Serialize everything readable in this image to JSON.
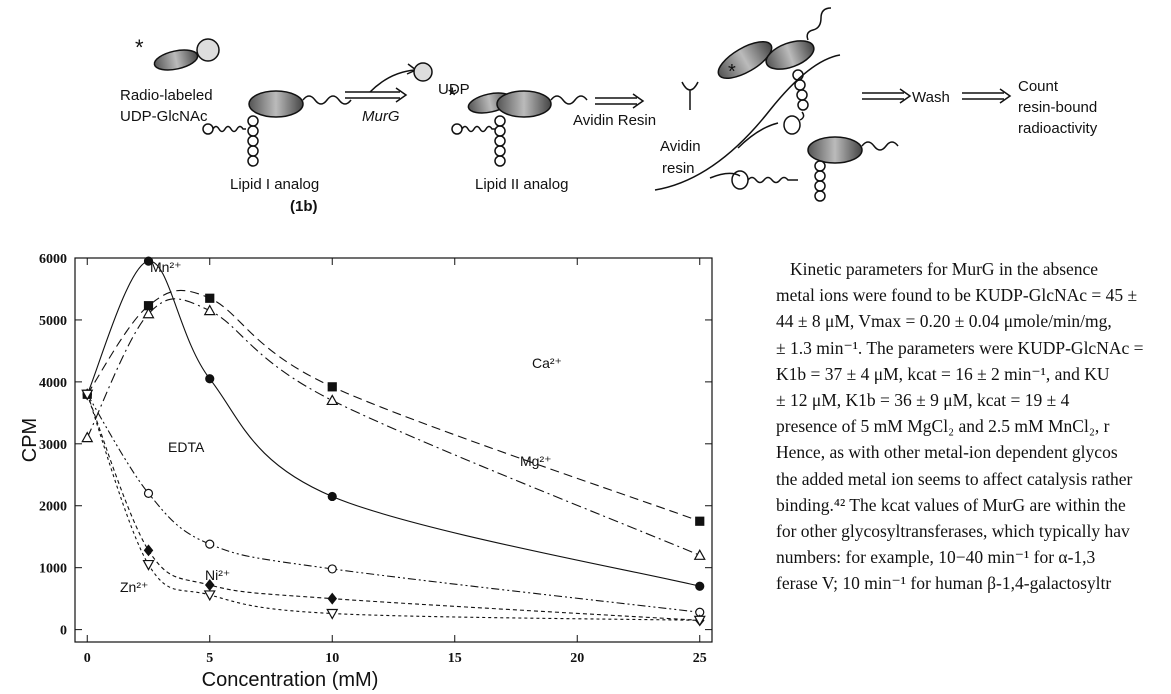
{
  "scheme": {
    "labels": [
      "Radio-labeled",
      "UDP-GlcNAc",
      "Lipid I  analog",
      "(1b)",
      "MurG",
      "UDP",
      "Lipid II  analog",
      "Avidin Resin",
      "Avidin",
      "resin",
      "Wash",
      "Count",
      "resin-bound",
      "radioactivity"
    ]
  },
  "chart_data": {
    "type": "line",
    "x_label": "Concentration (mM)",
    "y_label": "CPM",
    "x": [
      0,
      2.5,
      5,
      10,
      25
    ],
    "xlim": [
      -0.5,
      25.5
    ],
    "ylim": [
      -200,
      6000
    ],
    "xticks": [
      0,
      5,
      10,
      15,
      20,
      25
    ],
    "yticks": [
      0,
      1000,
      2000,
      3000,
      4000,
      5000,
      6000
    ],
    "series": [
      {
        "name": "Mn²⁺",
        "color": "#111",
        "marker": "circle-filled",
        "dash": "none",
        "values": [
          3800,
          5950,
          4050,
          2150,
          700
        ]
      },
      {
        "name": "Ca²⁺",
        "color": "#111",
        "marker": "square-filled",
        "dash": "9 5",
        "values": [
          3800,
          5230,
          5350,
          3920,
          1750
        ]
      },
      {
        "name": "Mg²⁺",
        "color": "#111",
        "marker": "triangle-open",
        "dash": "10 4 2 4",
        "values": [
          3100,
          5100,
          5150,
          3700,
          1200
        ]
      },
      {
        "name": "EDTA",
        "color": "#111",
        "marker": "circle-open",
        "dash": "8 3 2 3 2 3",
        "values": [
          3800,
          2200,
          1380,
          980,
          280
        ]
      },
      {
        "name": "Ni²⁺",
        "color": "#111",
        "marker": "diamond-filled",
        "dash": "4 3",
        "values": [
          3800,
          1280,
          720,
          500,
          150
        ]
      },
      {
        "name": "Zn²⁺",
        "color": "#111",
        "marker": "triangle-down-open",
        "dash": "3 3",
        "values": [
          3800,
          1050,
          560,
          260,
          150
        ]
      }
    ]
  },
  "text": {
    "lines": [
      "Kinetic parameters for MurG in the absence",
      "metal ions were found to be KUDP-GlcNAc = 45 ±",
      "44 ± 8 μM, Vmax = 0.20 ± 0.04 μmole/min/mg,",
      "± 1.3 min⁻¹. The parameters were KUDP-GlcNAc =",
      "K1b = 37 ± 4 μM, kcat = 16 ± 2 min⁻¹, and KU",
      "± 12 μM, K1b = 36 ± 9 μM, kcat = 19 ± 4",
      "presence of 5 mM MgCl₂ and 2.5 mM MnCl₂, r",
      "Hence, as with other metal-ion dependent glycos",
      "the added metal ion seems to affect catalysis rather",
      "binding.⁴² The kcat values of MurG are within the",
      "for other glycosyltransferases, which typically hav",
      "numbers:  for  example,  10−40  min⁻¹  for  α-1,3",
      "ferase V; 10 min⁻¹ for human β-1,4-galactosyltr"
    ]
  }
}
